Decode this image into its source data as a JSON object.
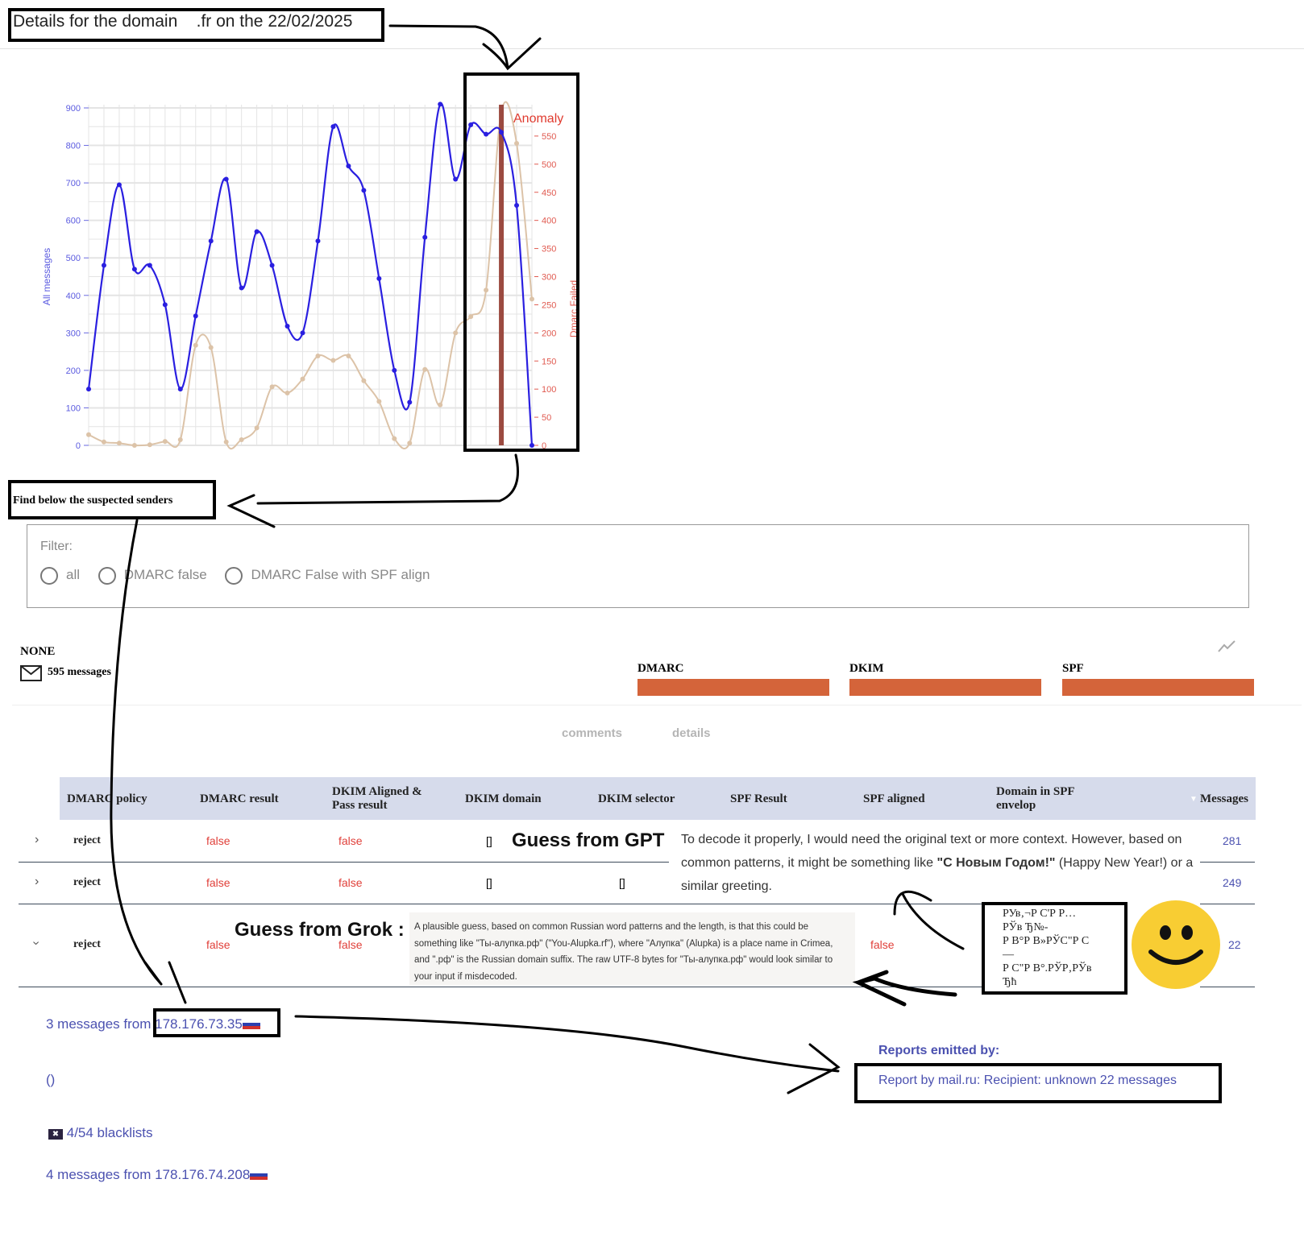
{
  "header": {
    "title": "Details for the domain    .fr on the 22/02/2025"
  },
  "chart_data": {
    "type": "line",
    "title": "",
    "ylabel": "All messages",
    "y2label": "Dmarc Failed",
    "ylim": [
      0,
      900
    ],
    "y2lim": [
      0,
      600
    ],
    "yticks": [
      "0",
      "100",
      "200",
      "300",
      "400",
      "500",
      "600",
      "700",
      "800",
      "900"
    ],
    "y2ticks": [
      "0",
      "50",
      "100",
      "150",
      "200",
      "250",
      "300",
      "350",
      "400",
      "450",
      "500",
      "550"
    ],
    "grid": true,
    "series": [
      {
        "name": "All messages",
        "axis": "left",
        "color": "#2a1fe0",
        "values": [
          150,
          480,
          695,
          470,
          480,
          375,
          150,
          345,
          545,
          710,
          420,
          570,
          480,
          318,
          300,
          545,
          850,
          745,
          680,
          445,
          200,
          115,
          555,
          910,
          710,
          855,
          830,
          835,
          640,
          0
        ]
      },
      {
        "name": "Dmarc Failed",
        "axis": "right",
        "color": "#dcc3a8",
        "values": [
          19,
          6,
          4,
          0,
          1,
          7,
          10,
          178,
          174,
          6,
          10,
          31,
          104,
          93,
          118,
          159,
          151,
          159,
          115,
          78,
          12,
          4,
          135,
          72,
          200,
          229,
          276,
          593,
          537,
          260
        ]
      }
    ],
    "annotation": {
      "label": "Anomaly",
      "index": 27,
      "color": "#e03a2e",
      "bar_color": "#9b4a40"
    }
  },
  "annotations": {
    "suspected": "Find below the suspected senders",
    "gpt_label": "Guess from GPT :",
    "gpt_text_1": "To decode it properly, I would need the original text or more context. However, based on common patterns, it might be something like ",
    "gpt_text_bold": "\"С Новым Годом!\"",
    "gpt_text_2": " (Happy New Year!) or a similar greeting.",
    "grok_label": "Guess from Grok :",
    "grok_text": "A plausible guess, based on common Russian word patterns and the length, is that this could be something like \"Ты-алупка.рф\" (\"You-Alupka.rf\"), where \"Алупка\" (Alupka) is a place name in Crimea, and \".рф\" is the Russian domain suffix. The raw UTF-8 bytes for \"Ты-алупка.рф\" would look similar to your input if misdecoded.",
    "garbled": "РУв‚¬Р С'Р Р…\nРЎв Ђ№-\nР В°Р В»РЎС\"Р С\n—\nР С\"Р В°.РЎР‚РЎв\nЂћ"
  },
  "filter": {
    "label": "Filter:",
    "options": [
      "all",
      "DMARC false",
      "DMARC False with SPF align"
    ]
  },
  "summary": {
    "policy": "NONE",
    "messages": "595 messages",
    "bars": [
      {
        "label": "DMARC",
        "color": "#d4643a"
      },
      {
        "label": "DKIM",
        "color": "#d4643a"
      },
      {
        "label": "SPF",
        "color": "#d4643a"
      }
    ]
  },
  "tabs": [
    "comments",
    "details"
  ],
  "table": {
    "headers": [
      "DMARC policy",
      "DMARC result",
      "DKIM Aligned & Pass result",
      "DKIM domain",
      "DKIM selector",
      "SPF Result",
      "SPF aligned",
      "Domain in SPF envelop",
      "Messages"
    ],
    "rows": [
      {
        "policy": "reject",
        "dmarc": "false",
        "dkim": "false",
        "dkim_domain": "[]",
        "messages": "281"
      },
      {
        "policy": "reject",
        "dmarc": "false",
        "dkim": "false",
        "dkim_domain": "[]",
        "dkim_selector": "[]",
        "messages": "249"
      },
      {
        "policy": "reject",
        "dmarc": "false",
        "dkim": "false",
        "spf_aligned": "false",
        "messages": "22"
      }
    ]
  },
  "senders": {
    "first": {
      "prefix": "3 messages from ",
      "ip": "178.176.73.35"
    },
    "parens": "()",
    "blacklists": "4/54 blacklists",
    "second": "4 messages from 178.176.74.208"
  },
  "reports": {
    "title": "Reports emitted by:",
    "item": "Report by mail.ru: Recipient: unknown 22 messages"
  }
}
